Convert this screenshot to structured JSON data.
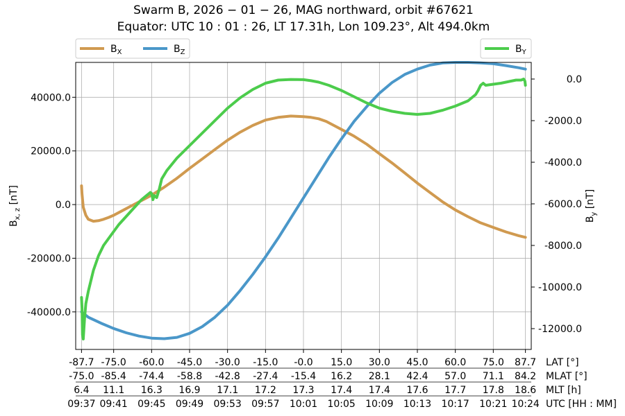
{
  "chart_data": {
    "type": "line",
    "title_line1": "Swarm B,  2026 − 01 − 26,  MAG northward,  orbit #67621",
    "title_line2": "Equator:  UTC 10 : 01 : 26,  LT 17.31h,  Lon 109.23°,  Alt 494.0km",
    "left_ylabel": "B",
    "left_ylabel_sub": "x, z",
    "left_ylabel_unit": " [nT]",
    "right_ylabel": "B",
    "right_ylabel_sub": "y",
    "right_ylabel_unit": " [nT]",
    "left_ylim": [
      -54000,
      53000
    ],
    "right_ylim": [
      -13000,
      800
    ],
    "left_yticks": [
      "40000.0",
      "20000.0",
      "0.0",
      "-20000.0",
      "-40000.0"
    ],
    "left_ytick_values": [
      40000,
      20000,
      0,
      -20000,
      -40000
    ],
    "right_yticks": [
      "0.0",
      "-2000.0",
      "-4000.0",
      "-6000.0",
      "-8000.0",
      "-10000.0",
      "-12000.0"
    ],
    "right_ytick_values": [
      0,
      -2000,
      -4000,
      -6000,
      -8000,
      -10000,
      -12000
    ],
    "grid": true,
    "x_axis_rows": [
      {
        "label": "LAT [°]",
        "ticks": [
          "-87.7",
          "-75.0",
          "-60.0",
          "-45.0",
          "-30.0",
          "-15.0",
          "-0.0",
          "15.0",
          "30.0",
          "45.0",
          "60.0",
          "75.0",
          "87.7"
        ]
      },
      {
        "label": "MLAT [°]",
        "ticks": [
          "-75.0",
          "-85.4",
          "-74.4",
          "-58.8",
          "-42.8",
          "-27.4",
          "-15.4",
          "16.2",
          "28.1",
          "42.4",
          "57.0",
          "71.1",
          "84.2"
        ]
      },
      {
        "label": "MLT [h]",
        "ticks": [
          "6.4",
          "11.1",
          "16.3",
          "16.9",
          "17.1",
          "17.2",
          "17.3",
          "17.4",
          "17.4",
          "17.6",
          "17.7",
          "17.8",
          "18.6"
        ]
      },
      {
        "label": "UTC [HH : MM]",
        "ticks": [
          "09:37",
          "09:41",
          "09:45",
          "09:49",
          "09:53",
          "09:57",
          "10:01",
          "10:05",
          "10:09",
          "10:13",
          "10:17",
          "10:21",
          "10:24"
        ]
      }
    ],
    "x_tick_lat": [
      -87.7,
      -75,
      -60,
      -45,
      -30,
      -15,
      0,
      15,
      30,
      45,
      60,
      75,
      87.7
    ],
    "legend_left": [
      {
        "name": "B",
        "sub": "X",
        "color": "#d09a50"
      },
      {
        "name": "B",
        "sub": "Z",
        "color": "#4a97c9"
      }
    ],
    "legend_right": [
      {
        "name": "B",
        "sub": "Y",
        "color": "#4ccc4c"
      }
    ],
    "series": [
      {
        "name": "B_X",
        "axis": "left",
        "color": "#d09a50",
        "x": [
          -87.7,
          -87.5,
          -87,
          -86,
          -85,
          -83,
          -81,
          -79,
          -77,
          -75,
          -72,
          -69,
          -66,
          -63,
          -60,
          -55,
          -50,
          -45,
          -40,
          -35,
          -30,
          -25,
          -20,
          -15,
          -10,
          -5,
          0,
          3,
          6,
          9,
          12,
          15,
          20,
          25,
          30,
          35,
          40,
          45,
          50,
          55,
          60,
          65,
          70,
          75,
          80,
          85,
          87.7
        ],
        "values": [
          7000,
          4000,
          -1000,
          -4000,
          -5500,
          -6200,
          -6000,
          -5500,
          -4800,
          -4000,
          -2500,
          -1000,
          500,
          2000,
          3500,
          6500,
          9800,
          13500,
          17000,
          20500,
          24000,
          27000,
          29500,
          31500,
          32500,
          33000,
          32800,
          32500,
          32000,
          31000,
          29500,
          28000,
          25500,
          22500,
          19000,
          15500,
          11800,
          8000,
          4500,
          1000,
          -2000,
          -4500,
          -6800,
          -8500,
          -10200,
          -11600,
          -12200
        ]
      },
      {
        "name": "B_Z",
        "axis": "left",
        "color": "#4a97c9",
        "x": [
          -87.7,
          -85,
          -80,
          -75,
          -70,
          -65,
          -60,
          -55,
          -50,
          -45,
          -40,
          -35,
          -30,
          -25,
          -20,
          -15,
          -10,
          -5,
          0,
          5,
          10,
          15,
          20,
          25,
          30,
          35,
          40,
          45,
          50,
          55,
          60,
          65,
          70,
          75,
          80,
          85,
          87.7
        ],
        "values": [
          -40000,
          -42000,
          -44200,
          -46200,
          -47800,
          -49000,
          -49800,
          -50000,
          -49500,
          -48000,
          -45500,
          -42000,
          -37500,
          -32000,
          -26000,
          -19500,
          -12500,
          -5000,
          2500,
          10000,
          17500,
          24500,
          31000,
          36500,
          41500,
          45500,
          48500,
          50500,
          52000,
          52800,
          53000,
          53000,
          52800,
          52500,
          51800,
          51000,
          50500
        ]
      },
      {
        "name": "B_Y",
        "axis": "right",
        "color": "#4ccc4c",
        "x": [
          -87.7,
          -87.5,
          -87.3,
          -87,
          -86.5,
          -86,
          -85,
          -83,
          -81,
          -79,
          -76,
          -73,
          -70,
          -67,
          -64,
          -62,
          -61,
          -60.5,
          -60,
          -59.5,
          -59,
          -58,
          -57,
          -56,
          -54,
          -50,
          -45,
          -40,
          -35,
          -30,
          -25,
          -20,
          -15,
          -10,
          -5,
          0,
          3,
          6,
          10,
          15,
          20,
          25,
          30,
          35,
          40,
          45,
          50,
          55,
          60,
          65,
          68,
          69,
          70,
          71,
          72,
          75,
          78,
          80,
          82,
          84,
          86,
          87,
          87.5,
          87.7
        ],
        "values": [
          -10500,
          -11000,
          -12300,
          -12500,
          -11500,
          -10800,
          -10200,
          -9200,
          -8500,
          -8000,
          -7500,
          -7000,
          -6600,
          -6200,
          -5800,
          -5600,
          -5500,
          -5450,
          -5500,
          -5800,
          -5600,
          -5700,
          -5300,
          -4800,
          -4400,
          -3800,
          -3200,
          -2600,
          -2000,
          -1400,
          -900,
          -500,
          -200,
          -50,
          -20,
          -30,
          -80,
          -150,
          -300,
          -550,
          -850,
          -1150,
          -1400,
          -1550,
          -1650,
          -1700,
          -1650,
          -1500,
          -1300,
          -1050,
          -750,
          -550,
          -300,
          -200,
          -300,
          -250,
          -200,
          -150,
          -100,
          -50,
          -50,
          0,
          -100,
          -300
        ]
      }
    ]
  }
}
